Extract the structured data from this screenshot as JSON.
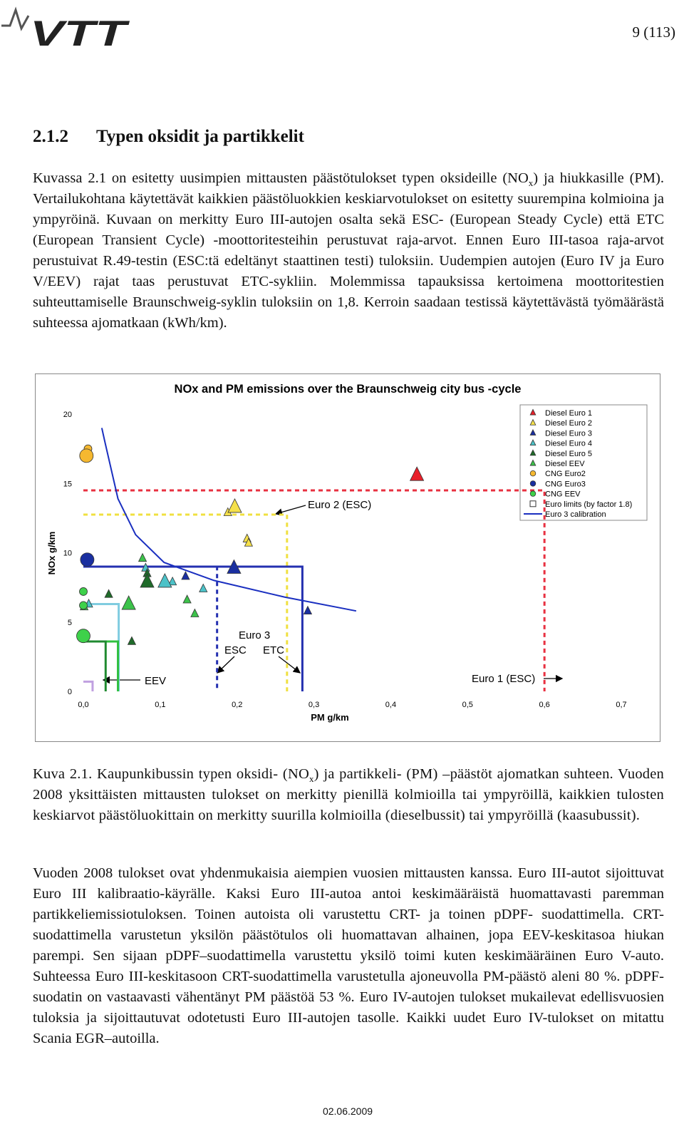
{
  "header": {
    "logo": "VTT",
    "page": "9 (113)"
  },
  "section": {
    "number": "2.1.2",
    "title": "Typen oksidit ja partikkelit"
  },
  "paragraphs": [
    [
      "Kuvassa 2.1 on esitetty uusimpien mittausten päästötulokset typen oksideille (NO",
      {
        "sub": "x"
      },
      ") ja hiukkasille (PM). Vertailukohtana käytettävät kaikkien päästöluokkien keskiarvotulokset on esitetty suurempina kolmioina ja ympyröinä. Kuvaan on merkitty Euro III-autojen osalta sekä ESC- (European Steady Cycle) että ETC (European Transient Cycle) -moottoritesteihin perustuvat raja-arvot. Ennen Euro III-tasoa raja-arvot perustuivat R.49-testin (ESC:tä edeltänyt staattinen testi) tuloksiin. Uudempien autojen (Euro IV ja Euro V/EEV) rajat taas perustuvat ETC-sykliin. Molemmissa tapauksissa kertoimena moottoritestien suhteuttamiselle Braunschweig-syklin tuloksiin on 1,8. Kerroin saadaan testissä käytettävästä työmäärästä suhteessa ajomatkaan (kWh/km)."
    ],
    [
      "Vuoden 2008 tulokset ovat yhdenmukaisia aiempien vuosien mittausten kanssa. Euro III-autot sijoittuvat Euro III kalibraatio-käyrälle. Kaksi Euro III-autoa antoi keskimääräistä huomattavasti paremman partikkeliemissiotuloksen. Toinen autoista oli varustettu CRT- ja toinen pDPF- suodattimella. CRT-suodattimella varustetun yksilön päästötulos oli huomattavan alhainen, jopa EEV-keskitasoa hiukan parempi. Sen sijaan pDPF–suodattimella varustettu yksilö toimi kuten keskimääräinen Euro V-auto. Suhteessa Euro III-keskitasoon CRT-suodattimella varustetulla ajoneuvolla PM-päästö aleni 80 %. pDPF-suodatin on vastaavasti vähentänyt PM päästöä 53 %. Euro IV-autojen tulokset mukailevat edellisvuosien tuloksia ja sijoittautuvat odotetusti Euro III-autojen tasolle. Kaikki uudet Euro IV-tulokset on mitattu Scania EGR–autoilla."
    ]
  ],
  "caption": [
    "Kuva 2.1. Kaupunkibussin typen oksidi- (NO",
    {
      "sub": "x"
    },
    ") ja partikkeli- (PM) –päästöt ajomatkan suhteen. Vuoden 2008 yksittäisten mittausten tulokset on merkitty pienillä kolmioilla tai ympyröillä, kaikkien tulosten keskiarvot päästöluokittain on merkitty suurilla kolmioilla (dieselbussit) tai ympyröillä (kaasubussit)."
  ],
  "footer": {
    "date": "02.06.2009"
  },
  "chart_data": {
    "type": "scatter",
    "title": "NOx and PM emissions over the Braunschweig city bus -cycle",
    "x_label": "PM g/km",
    "y_label": "NOx g/km",
    "xlim": [
      0,
      0.7
    ],
    "ylim": [
      0,
      20
    ],
    "xticks": [
      {
        "value": 0,
        "label": "0,0"
      },
      {
        "value": 0.1,
        "label": "0,1"
      },
      {
        "value": 0.2,
        "label": "0,2"
      },
      {
        "value": 0.3,
        "label": "0,3"
      },
      {
        "value": 0.4,
        "label": "0,4"
      },
      {
        "value": 0.5,
        "label": "0,5"
      },
      {
        "value": 0.6,
        "label": "0,6"
      },
      {
        "value": 0.7,
        "label": "0,7"
      }
    ],
    "yticks": [
      0,
      5,
      10,
      15,
      20
    ],
    "series": [
      {
        "name": "Diesel Euro 1",
        "color": "#e8202a",
        "marker": "triangle",
        "mean": {
          "x": 0.434,
          "y": 15.6
        },
        "x": [],
        "y": []
      },
      {
        "name": "Diesel Euro 2",
        "color": "#f5e04a",
        "marker": "triangle",
        "mean": {
          "x": 0.197,
          "y": 13.3
        },
        "x": [
          0.188,
          0.213,
          0.215
        ],
        "y": [
          12.9,
          11.0,
          10.7
        ]
      },
      {
        "name": "Diesel Euro 3",
        "color": "#1a2fa0",
        "marker": "triangle",
        "mean": {
          "x": 0.196,
          "y": 8.9
        },
        "x": [
          0.292,
          0.133
        ],
        "y": [
          5.8,
          8.3
        ]
      },
      {
        "name": "Diesel Euro 4",
        "color": "#4cc2c8",
        "marker": "triangle",
        "mean": {
          "x": 0.106,
          "y": 7.9
        },
        "x": [
          0.081,
          0.116,
          0.156,
          0.007
        ],
        "y": [
          8.9,
          7.9,
          7.4,
          6.3
        ]
      },
      {
        "name": "Diesel Euro 5",
        "color": "#1f6b2a",
        "marker": "triangle",
        "mean": {
          "x": 0.083,
          "y": 7.9
        },
        "x": [
          0.033,
          0.063,
          0.083
        ],
        "y": [
          7.0,
          3.6,
          8.5
        ]
      },
      {
        "name": "Diesel EEV",
        "color": "#3cc24a",
        "marker": "triangle",
        "mean": {
          "x": 0.059,
          "y": 6.3
        },
        "x": [
          0.077,
          0.135,
          0.145,
          0.001
        ],
        "y": [
          9.6,
          6.6,
          5.6,
          6.1
        ]
      },
      {
        "name": "CNG Euro2",
        "color": "#f5b830",
        "marker": "circle",
        "mean": {
          "x": 0.004,
          "y": 17.0
        },
        "x": [
          0.006
        ],
        "y": [
          17.5
        ]
      },
      {
        "name": "CNG Euro3",
        "color": "#1a2fa0",
        "marker": "circle",
        "mean": {
          "x": 0.005,
          "y": 9.5
        },
        "x": [],
        "y": []
      },
      {
        "name": "CNG EEV",
        "color": "#3ed14a",
        "marker": "circle",
        "mean": {
          "x": 0.0,
          "y": 4.0
        },
        "x": [
          0.0,
          0.0
        ],
        "y": [
          7.2,
          6.2
        ]
      }
    ],
    "limits_legend": "Euro limits (by factor 1.8)",
    "limits": [
      {
        "x": 0.6,
        "y": 14.5,
        "color": "#e83040",
        "dashed": true
      },
      {
        "x": 0.265,
        "y": 12.75,
        "color": "#f0e040",
        "dashed": true
      },
      {
        "x": 0.174,
        "y": 9.0,
        "color": "#2430b0",
        "dashed": true
      },
      {
        "x": 0.285,
        "y": 9.0,
        "color": "#2430b0",
        "dashed": false
      },
      {
        "x": 0.046,
        "y": 6.3,
        "color": "#80cce0",
        "dashed": false
      },
      {
        "x": 0.045,
        "y": 3.6,
        "color": "#30c040",
        "dashed": false
      },
      {
        "x": 0.029,
        "y": 3.6,
        "color": "#208a30",
        "dashed": false
      },
      {
        "x": 0.012,
        "y": 0.7,
        "color": "#c0a0e0",
        "dashed": false
      }
    ],
    "calibration": {
      "name": "Euro 3 calibration",
      "color": "#1a2fc0",
      "x": [
        0.024,
        0.028,
        0.045,
        0.068,
        0.105,
        0.17,
        0.262,
        0.355
      ],
      "y": [
        19.0,
        18.0,
        13.9,
        11.3,
        9.3,
        8.0,
        6.8,
        5.8
      ]
    },
    "annotations": [
      "Euro 2 (ESC)",
      "Euro 3",
      "ESC",
      "ETC",
      "EEV",
      "Euro 1 (ESC)"
    ]
  }
}
